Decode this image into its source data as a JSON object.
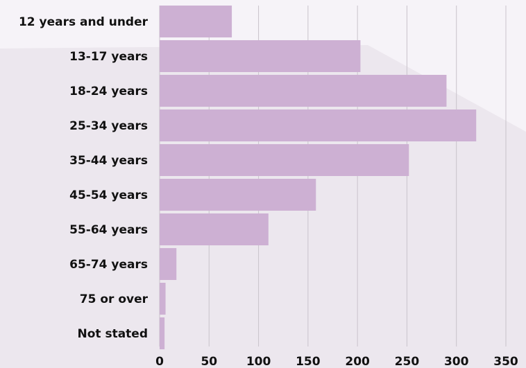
{
  "chart_data": {
    "type": "bar",
    "orientation": "horizontal",
    "title": "",
    "xlabel": "",
    "ylabel": "",
    "categories": [
      "12 years and under",
      "13-17 years",
      "18-24 years",
      "25-34 years",
      "35-44 years",
      "45-54 years",
      "55-64 years",
      "65-74 years",
      "75 or over",
      "Not stated"
    ],
    "values": [
      73,
      203,
      290,
      320,
      252,
      158,
      110,
      17,
      6,
      5
    ],
    "xlim": [
      0,
      350
    ],
    "xticks": [
      0,
      50,
      100,
      150,
      200,
      250,
      300,
      350
    ],
    "grid": "vertical",
    "legend": "none",
    "colors": {
      "bar": "#cdb0d3",
      "grid": "#c9c3cb",
      "background": "#ece7ee",
      "text": "#111111"
    }
  }
}
